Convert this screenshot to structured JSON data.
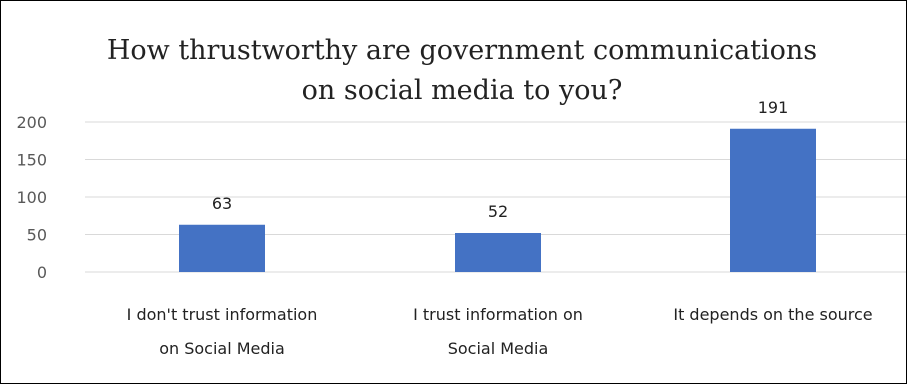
{
  "chart_data": {
    "type": "bar",
    "title_lines": [
      "How thrustworthy are government communications",
      "on social media to you?"
    ],
    "categories": [
      [
        "I don't trust information",
        "on Social Media"
      ],
      [
        "I trust information on",
        "Social Media"
      ],
      [
        "It depends on the source"
      ]
    ],
    "values": [
      63,
      52,
      191
    ],
    "data_labels": [
      "63",
      "52",
      "191"
    ],
    "yticks": [
      0,
      50,
      100,
      150,
      200
    ],
    "ytick_labels": [
      "0",
      "50",
      "100",
      "150",
      "200"
    ],
    "ylim": [
      0,
      200
    ],
    "grid": true,
    "legend": "none",
    "bar_color": "#4472c4",
    "grid_color": "#d9d9d9"
  }
}
